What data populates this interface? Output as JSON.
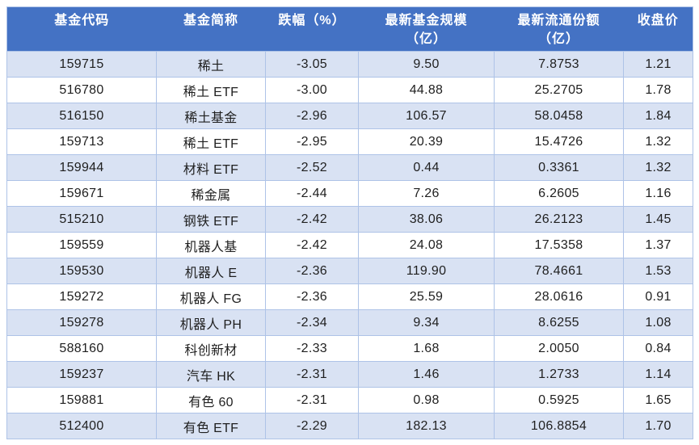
{
  "colors": {
    "header_bg": "#4472c4",
    "header_text": "#ffffff",
    "row_stripe": "#d9e2f3",
    "row_plain": "#ffffff",
    "grid_border": "#aec3e7",
    "body_text": "#1f1f1f"
  },
  "table": {
    "headers": [
      {
        "line1": "基金代码",
        "line2": ""
      },
      {
        "line1": "基金简称",
        "line2": ""
      },
      {
        "line1": "跌幅（%）",
        "line2": ""
      },
      {
        "line1": "最新基金规模",
        "line2": "（亿）"
      },
      {
        "line1": "最新流通份额",
        "line2": "（亿）"
      },
      {
        "line1": "收盘价",
        "line2": ""
      }
    ],
    "rows": [
      [
        "159715",
        "稀土",
        "-3.05",
        "9.50",
        "7.8753",
        "1.21"
      ],
      [
        "516780",
        "稀土 ETF",
        "-3.00",
        "44.88",
        "25.2705",
        "1.78"
      ],
      [
        "516150",
        "稀土基金",
        "-2.96",
        "106.57",
        "58.0458",
        "1.84"
      ],
      [
        "159713",
        "稀土 ETF",
        "-2.95",
        "20.39",
        "15.4726",
        "1.32"
      ],
      [
        "159944",
        "材料 ETF",
        "-2.52",
        "0.44",
        "0.3361",
        "1.32"
      ],
      [
        "159671",
        "稀金属",
        "-2.44",
        "7.26",
        "6.2605",
        "1.16"
      ],
      [
        "515210",
        "钢铁 ETF",
        "-2.42",
        "38.06",
        "26.2123",
        "1.45"
      ],
      [
        "159559",
        "机器人基",
        "-2.42",
        "24.08",
        "17.5358",
        "1.37"
      ],
      [
        "159530",
        "机器人 E",
        "-2.36",
        "119.90",
        "78.4661",
        "1.53"
      ],
      [
        "159272",
        "机器人 FG",
        "-2.36",
        "25.59",
        "28.0616",
        "0.91"
      ],
      [
        "159278",
        "机器人 PH",
        "-2.34",
        "9.34",
        "8.6255",
        "1.08"
      ],
      [
        "588160",
        "科创新材",
        "-2.33",
        "1.68",
        "2.0050",
        "0.84"
      ],
      [
        "159237",
        "汽车 HK",
        "-2.31",
        "1.46",
        "1.2733",
        "1.14"
      ],
      [
        "159881",
        "有色 60",
        "-2.31",
        "0.98",
        "0.5925",
        "1.65"
      ],
      [
        "512400",
        "有色 ETF",
        "-2.29",
        "182.13",
        "106.8854",
        "1.70"
      ]
    ]
  }
}
